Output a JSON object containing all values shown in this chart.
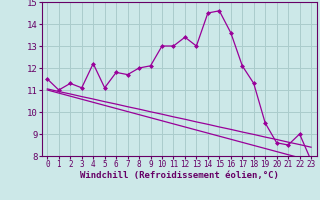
{
  "xlabel": "Windchill (Refroidissement éolien,°C)",
  "background_color": "#cce8e8",
  "line_color": "#990099",
  "grid_color": "#aacccc",
  "x": [
    0,
    1,
    2,
    3,
    4,
    5,
    6,
    7,
    8,
    9,
    10,
    11,
    12,
    13,
    14,
    15,
    16,
    17,
    18,
    19,
    20,
    21,
    22,
    23
  ],
  "y_main": [
    11.5,
    11.0,
    11.3,
    11.1,
    12.2,
    11.1,
    11.8,
    11.7,
    12.0,
    12.1,
    13.0,
    13.0,
    13.4,
    13.0,
    14.5,
    14.6,
    13.6,
    12.1,
    11.3,
    9.5,
    8.6,
    8.5,
    9.0,
    7.8
  ],
  "y_reg1": [
    11.05,
    10.93,
    10.82,
    10.7,
    10.59,
    10.47,
    10.36,
    10.24,
    10.13,
    10.01,
    9.9,
    9.78,
    9.67,
    9.55,
    9.44,
    9.32,
    9.21,
    9.09,
    8.98,
    8.86,
    8.75,
    8.63,
    8.52,
    8.4
  ],
  "y_reg2": [
    11.0,
    10.86,
    10.72,
    10.58,
    10.44,
    10.3,
    10.16,
    10.02,
    9.88,
    9.74,
    9.6,
    9.46,
    9.32,
    9.18,
    9.04,
    8.9,
    8.76,
    8.62,
    8.48,
    8.34,
    8.2,
    8.06,
    7.92,
    7.78
  ],
  "ylim": [
    8,
    15
  ],
  "yticks": [
    8,
    9,
    10,
    11,
    12,
    13,
    14,
    15
  ],
  "xticks": [
    0,
    1,
    2,
    3,
    4,
    5,
    6,
    7,
    8,
    9,
    10,
    11,
    12,
    13,
    14,
    15,
    16,
    17,
    18,
    19,
    20,
    21,
    22,
    23
  ],
  "xlabel_fontsize": 6.5,
  "ytick_fontsize": 6.5,
  "xtick_fontsize": 5.5
}
